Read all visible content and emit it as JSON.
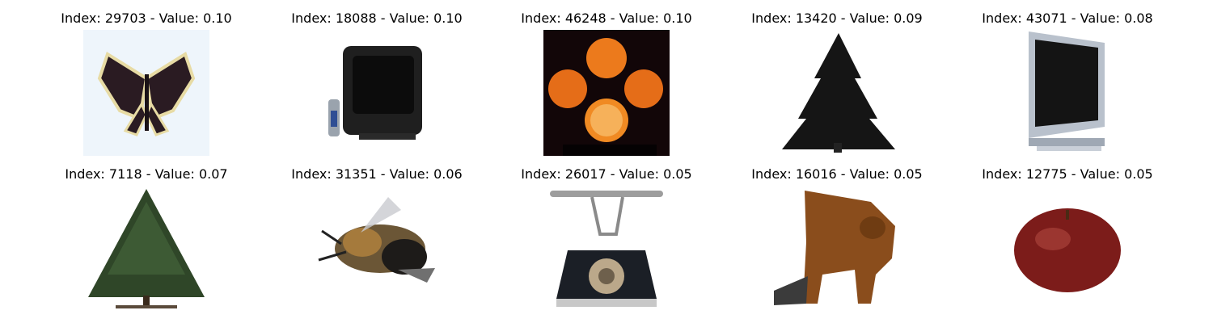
{
  "grid": {
    "items": [
      {
        "title": "Index: 29703 - Value: 0.10",
        "subject": "butterfly"
      },
      {
        "title": "Index: 18088 - Value: 0.10",
        "subject": "television"
      },
      {
        "title": "Index: 46248 - Value: 0.10",
        "subject": "oranges"
      },
      {
        "title": "Index: 13420 - Value: 0.09",
        "subject": "pine-tree"
      },
      {
        "title": "Index: 43071 - Value: 0.08",
        "subject": "flat-tv"
      },
      {
        "title": "Index: 7118 - Value: 0.07",
        "subject": "tree"
      },
      {
        "title": "Index: 31351 - Value: 0.06",
        "subject": "bee"
      },
      {
        "title": "Index: 26017 - Value: 0.05",
        "subject": "telephone"
      },
      {
        "title": "Index: 16016 - Value: 0.05",
        "subject": "animal"
      },
      {
        "title": "Index: 12775 - Value: 0.05",
        "subject": "apple"
      }
    ]
  }
}
